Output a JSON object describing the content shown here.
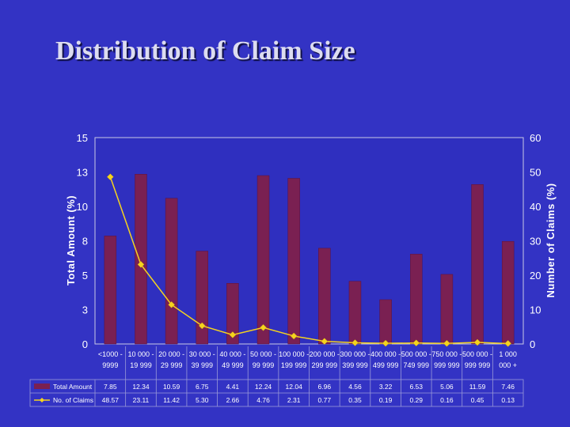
{
  "slide": {
    "title": "Distribution of Claim Size"
  },
  "colors": {
    "background": "#3333c4",
    "plot_area": "#2f2fbf",
    "bar": "#7a2052",
    "line": "#f5d31e",
    "gridline": "#c8c8e6"
  },
  "chart_data": {
    "type": "bar",
    "categories": [
      [
        "<1000 -",
        "9999"
      ],
      [
        "10 000 -",
        "19 999"
      ],
      [
        "20 000 -",
        "29 999"
      ],
      [
        "30 000 -",
        "39 999"
      ],
      [
        "40 000 -",
        "49 999"
      ],
      [
        "50 000 -",
        "99 999"
      ],
      [
        "100 000 -",
        "199 999"
      ],
      [
        "200 000 -",
        "299 999"
      ],
      [
        "300 000 -",
        "399 999"
      ],
      [
        "400 000 -",
        "499 999"
      ],
      [
        "500 000 -",
        "749 999"
      ],
      [
        "750 000 -",
        "999 999"
      ],
      [
        "500 000 -",
        "999 999"
      ],
      [
        "1 000",
        "000 +"
      ]
    ],
    "series": [
      {
        "name": "Total Amount",
        "type": "bar",
        "axis": "left",
        "values": [
          7.85,
          12.34,
          10.59,
          6.75,
          4.41,
          12.24,
          12.04,
          6.96,
          4.56,
          3.22,
          6.53,
          5.06,
          11.59,
          7.46
        ],
        "labels": [
          "7.85",
          "12.34",
          "10.59",
          "6.75",
          "4.41",
          "12.24",
          "12.04",
          "6.96",
          "4.56",
          "3.22",
          "6.53",
          "5.06",
          "11.59",
          "7.46"
        ]
      },
      {
        "name": "No. of Claims",
        "type": "line",
        "axis": "right",
        "values": [
          48.57,
          23.11,
          11.42,
          5.3,
          2.66,
          4.76,
          2.31,
          0.77,
          0.35,
          0.19,
          0.29,
          0.16,
          0.45,
          0.13
        ],
        "labels": [
          "48.57",
          "23.11",
          "11.42",
          "5.30",
          "2.66",
          "4.76",
          "2.31",
          "0.77",
          "0.35",
          "0.19",
          "0.29",
          "0.16",
          "0.45",
          "0.13"
        ]
      }
    ],
    "y_left": {
      "label": "Total Amount (%)",
      "range": [
        0,
        15
      ],
      "ticks": [
        0,
        2.5,
        5,
        7.5,
        10,
        12.5,
        15
      ],
      "tick_labels": [
        "0",
        "3",
        "5",
        "8",
        "10",
        "13",
        "15"
      ]
    },
    "y_right": {
      "label": "Number of Claims (%)",
      "range": [
        0,
        60
      ],
      "ticks": [
        0,
        10,
        20,
        30,
        40,
        50,
        60
      ],
      "tick_labels": [
        "0",
        "10",
        "20",
        "30",
        "40",
        "50",
        "60"
      ]
    },
    "grid": false,
    "legend": "data-table"
  }
}
